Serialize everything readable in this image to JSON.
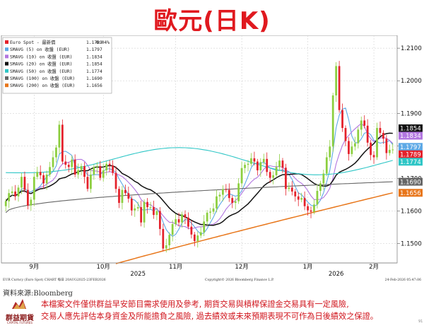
{
  "title": "歐元(日K)",
  "source_label": "資料來源:Bloomberg",
  "logo_text": "群益期貨",
  "logo_sub": "CAPITAL FUTURES",
  "disclaimer_lines": [
    "本檔案文件僅供群益早安節目需求使用及參考, 期貨交易與槓桿保證金交易具有一定風險,",
    "交易人應先評估本身資金及所能擔負之風險, 過去績效或未來預期表現不可作為日後績效之保證。"
  ],
  "page_number": "91",
  "chart_data": {
    "type": "candlestick",
    "footer_left": "EUR Curncy (Euro Spot) CHART 每日 20AUG2025-23FEB2026",
    "footer_mid": "Copyright© 2026 Bloomberg Finance L.P.",
    "footer_right": "24-Feb-2026 05:47:06",
    "ylim": [
      1.1445,
      1.2135
    ],
    "yticks": [
      1.15,
      1.16,
      1.17,
      1.18,
      1.19,
      1.2,
      1.21
    ],
    "ytick_labels": [
      "1.1500",
      "1.1600",
      "1.1700",
      "1.1800",
      "1.1900",
      "1.2000",
      "1.2100"
    ],
    "x_month_labels": [
      {
        "label": "9月",
        "index": 9
      },
      {
        "label": "10月",
        "index": 31
      },
      {
        "label": "11月",
        "index": 54
      },
      {
        "label": "12月",
        "index": 75
      },
      {
        "label": "1月",
        "index": 96
      },
      {
        "label": "2月",
        "index": 117
      }
    ],
    "x_year_labels": [
      {
        "label": "2025",
        "index": 42
      },
      {
        "label": "2026",
        "index": 105
      }
    ],
    "colors": {
      "up": "#8ccf3f",
      "down": "#e4212b"
    },
    "legend": [
      {
        "label": "Euro Spot - 最新價",
        "value": "1.1789",
        "change": "0.04%",
        "color": "#e4212b"
      },
      {
        "label": "SMAVG (5)  on 收盤 (EUR)",
        "value": "1.1797",
        "color": "#5ea9e6"
      },
      {
        "label": "SMAVG (10)  on 收盤 (EUR)",
        "value": "1.1834",
        "color": "#b276e0"
      },
      {
        "label": "SMAVG (20)  on 收盤 (EUR)",
        "value": "1.1854",
        "color": "#111111"
      },
      {
        "label": "SMAVG (50)  on 收盤 (EUR)",
        "value": "1.1774",
        "color": "#2ec6c6"
      },
      {
        "label": "SMAVG (100)  on 收盤 (EUR)",
        "value": "1.1690",
        "color": "#666666"
      },
      {
        "label": "SMAVG (200)  on 收盤 (EUR)",
        "value": "1.1656",
        "color": "#e8761a"
      }
    ],
    "value_tags": [
      {
        "label": "1.1854",
        "value": 1.1854,
        "bg": "#111111",
        "fg": "#ffffff"
      },
      {
        "label": "1.1834",
        "value": 1.1834,
        "bg": "#b276e0",
        "fg": "#ffffff"
      },
      {
        "label": "1.1797",
        "value": 1.1797,
        "bg": "#5ea9e6",
        "fg": "#ffffff"
      },
      {
        "label": "1.1789",
        "value": 1.1789,
        "bg": "#e4212b",
        "fg": "#ffffff"
      },
      {
        "label": "1.1774",
        "value": 1.1774,
        "bg": "#2ec6c6",
        "fg": "#ffffff"
      },
      {
        "label": "1.1690",
        "value": 1.169,
        "bg": "#666666",
        "fg": "#ffffff"
      },
      {
        "label": "1.1656",
        "value": 1.1656,
        "bg": "#e8761a",
        "fg": "#ffffff"
      }
    ],
    "close": [
      1.163,
      1.1655,
      1.166,
      1.1645,
      1.1672,
      1.1705,
      1.1665,
      1.1617,
      1.1635,
      1.1705,
      1.172,
      1.171,
      1.1685,
      1.1712,
      1.1735,
      1.1765,
      1.1795,
      1.1865,
      1.1752,
      1.1742,
      1.1735,
      1.1758,
      1.1712,
      1.1726,
      1.1738,
      1.1705,
      1.1668,
      1.1712,
      1.1735,
      1.1738,
      1.1702,
      1.1725,
      1.1745,
      1.174,
      1.1717,
      1.1668,
      1.1625,
      1.1665,
      1.1655,
      1.1638,
      1.1602,
      1.1608,
      1.1612,
      1.1565,
      1.1628,
      1.1612,
      1.1612,
      1.1588,
      1.16,
      1.1545,
      1.1485,
      1.1495,
      1.1527,
      1.156,
      1.1575,
      1.1565,
      1.159,
      1.158,
      1.1552,
      1.1528,
      1.1508,
      1.1525,
      1.1535,
      1.1568,
      1.1595,
      1.1598,
      1.1608,
      1.1645,
      1.165,
      1.1667,
      1.1665,
      1.164,
      1.1625,
      1.163,
      1.1685,
      1.1732,
      1.1742,
      1.1745,
      1.1762,
      1.1752,
      1.1725,
      1.175,
      1.176,
      1.172,
      1.1702,
      1.171,
      1.1735,
      1.1755,
      1.1733,
      1.1668,
      1.1672,
      1.166,
      1.1645,
      1.1635,
      1.164,
      1.1615,
      1.1602,
      1.1598,
      1.162,
      1.1662,
      1.1685,
      1.1715,
      1.1765,
      1.1798,
      1.1955,
      1.2045,
      1.191,
      1.1855,
      1.1815,
      1.1775,
      1.1798,
      1.1808,
      1.185,
      1.1878,
      1.1862,
      1.181,
      1.1772,
      1.1765,
      1.1855,
      1.184,
      1.1822,
      1.1778,
      1.1788,
      1.1789
    ],
    "ma_periods": [
      5,
      10,
      20,
      50,
      100,
      200
    ],
    "ma_colors": [
      "#5ea9e6",
      "#b276e0",
      "#111111",
      "#2ec6c6",
      "#666666",
      "#e8761a"
    ]
  }
}
